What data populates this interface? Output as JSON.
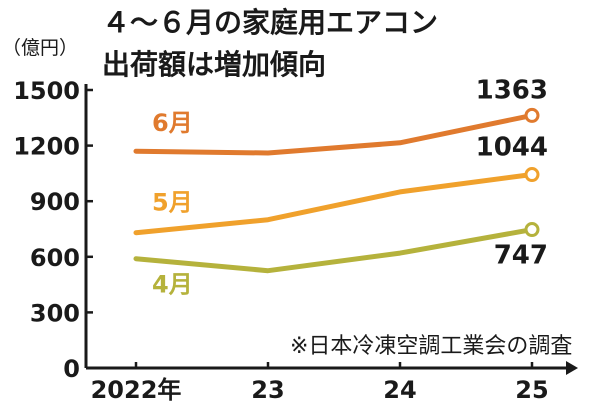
{
  "chart_data": {
    "type": "line",
    "title_lines": [
      "４～６月の家庭用エアコン",
      "出荷額は増加傾向"
    ],
    "unit_label": "（億円）",
    "source": "※日本冷凍空調工業会の調査",
    "x_tick_labels": [
      "2022年",
      "23",
      "24",
      "25"
    ],
    "x": [
      2022,
      2023,
      2024,
      2025
    ],
    "y_ticks": [
      0,
      300,
      600,
      900,
      1200,
      1500
    ],
    "y_tick_labels": [
      "0",
      "300",
      "600",
      "900",
      "1200",
      "1500"
    ],
    "ylim": [
      0,
      1500
    ],
    "grid": false,
    "series": [
      {
        "name": "6月",
        "values": [
          1170,
          1160,
          1215,
          1363
        ],
        "color": "#e07a2e",
        "end_label": "1363"
      },
      {
        "name": "5月",
        "values": [
          730,
          800,
          950,
          1044
        ],
        "color": "#f0a12c",
        "end_label": "1044"
      },
      {
        "name": "4月",
        "values": [
          590,
          525,
          620,
          747
        ],
        "color": "#b5b23c",
        "end_label": "747"
      }
    ]
  }
}
